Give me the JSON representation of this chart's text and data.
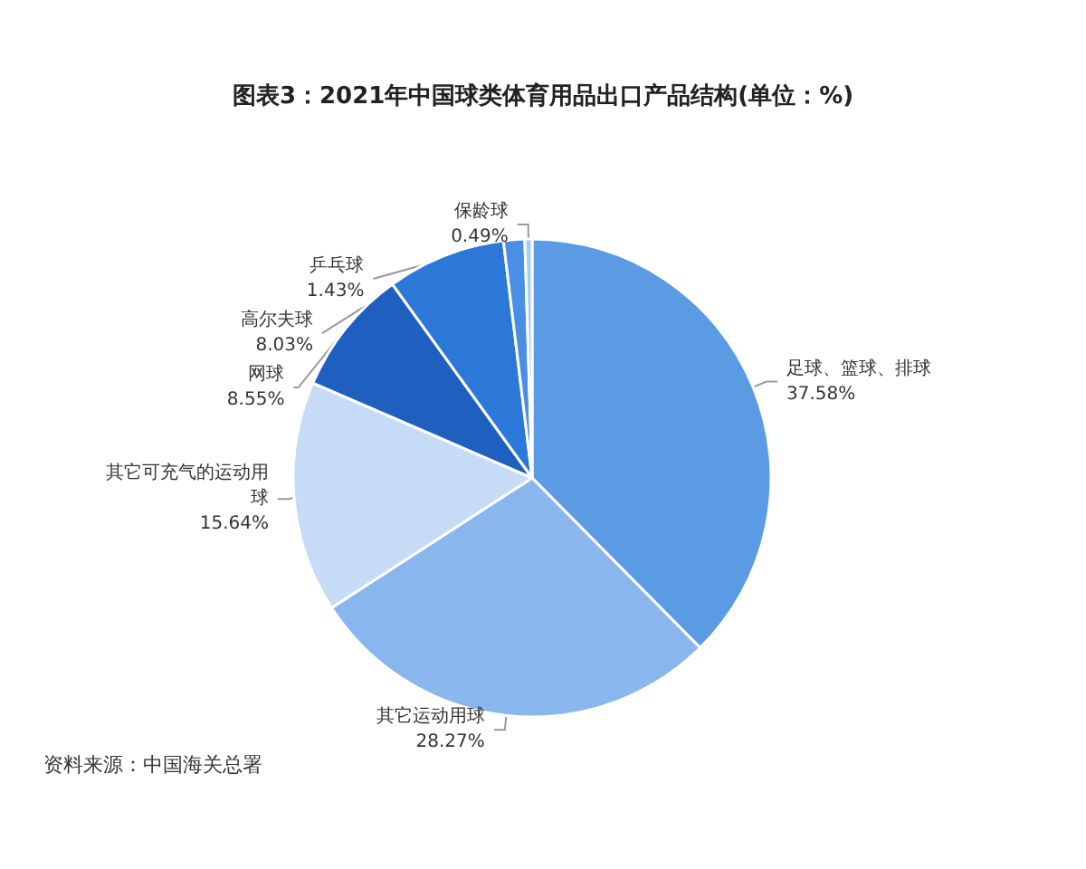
{
  "chart_data": {
    "type": "pie",
    "title": "图表3：2021年中国球类体育用品出口产品结构(单位：%)",
    "categories": [
      "足球、篮球、排球",
      "其它运动用球",
      "其它可充气的运动用球",
      "网球",
      "高尔夫球",
      "乒乓球",
      "保龄球"
    ],
    "values": [
      37.58,
      28.27,
      15.64,
      8.55,
      8.03,
      1.43,
      0.49
    ],
    "colors": [
      "#5b9be3",
      "#8ab6ee",
      "#c6dcf6",
      "#1f5fbf",
      "#2c78d8",
      "#4a8fe3",
      "#a9c9f1"
    ],
    "value_labels": [
      "37.58%",
      "28.27%",
      "15.64%",
      "8.55%",
      "8.03%",
      "1.43%",
      "0.49%"
    ],
    "legend": false,
    "annotations": [
      "资料来源：中国海关总署"
    ]
  }
}
